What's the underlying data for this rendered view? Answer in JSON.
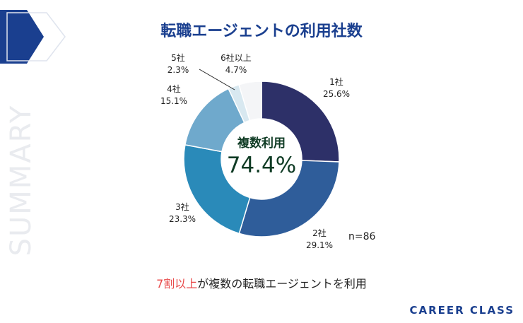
{
  "title": "転職エージェントの利用社数",
  "side_text": "SUMMARY",
  "center": {
    "caption": "複数利用",
    "value": "74.4%"
  },
  "note": "n=86",
  "caption": {
    "highlight": "7割以上",
    "rest": "が複数の転職エージェントを利用"
  },
  "logo": "CAREER CLASS",
  "colors": {
    "title": "#1a3f8f",
    "highlight": "#e84a4a",
    "center_text": "#0f3b24"
  },
  "chart_data": {
    "type": "pie",
    "title": "転職エージェントの利用社数",
    "categories": [
      "1社",
      "2社",
      "3社",
      "4社",
      "5社",
      "6社以上"
    ],
    "values": [
      25.6,
      29.1,
      23.3,
      15.1,
      2.3,
      4.7
    ],
    "value_labels": [
      "25.6%",
      "29.1%",
      "23.3%",
      "15.1%",
      "2.3%",
      "4.7%"
    ],
    "colors": [
      "#2d3068",
      "#2f5d9a",
      "#2a8ab9",
      "#6fa9cc",
      "#d8e8f0",
      "#f4f5f7"
    ],
    "donut": true,
    "legend": "none"
  }
}
